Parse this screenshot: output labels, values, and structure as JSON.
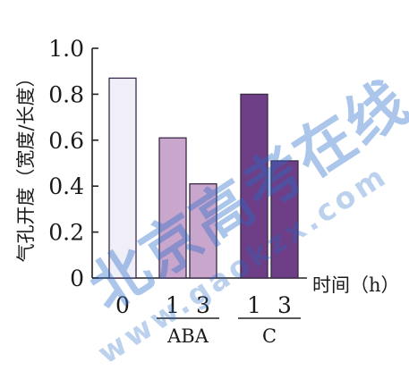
{
  "chart_data": {
    "type": "bar",
    "title": "",
    "ylabel": "气孔开度（宽度/长度）",
    "xlabel": "时间（h）",
    "ylim": [
      0,
      1.0
    ],
    "yticks": [
      "0",
      "0.2",
      "0.4",
      "0.6",
      "0.8",
      "1.0"
    ],
    "grid": false,
    "categories": [
      "0",
      "1",
      "3",
      "1",
      "3"
    ],
    "values": [
      0.87,
      0.61,
      0.41,
      0.8,
      0.51
    ],
    "groups": [
      {
        "label": "ABA",
        "members": [
          1,
          2
        ]
      },
      {
        "label": "C",
        "members": [
          3,
          4
        ]
      }
    ],
    "colors": [
      "#f0eff8",
      "#c9a6cc",
      "#c9a6cc",
      "#6e3f86",
      "#6e3f86"
    ]
  },
  "watermark": {
    "text": "北京高考在线",
    "url": "www.gaokzx.com"
  }
}
